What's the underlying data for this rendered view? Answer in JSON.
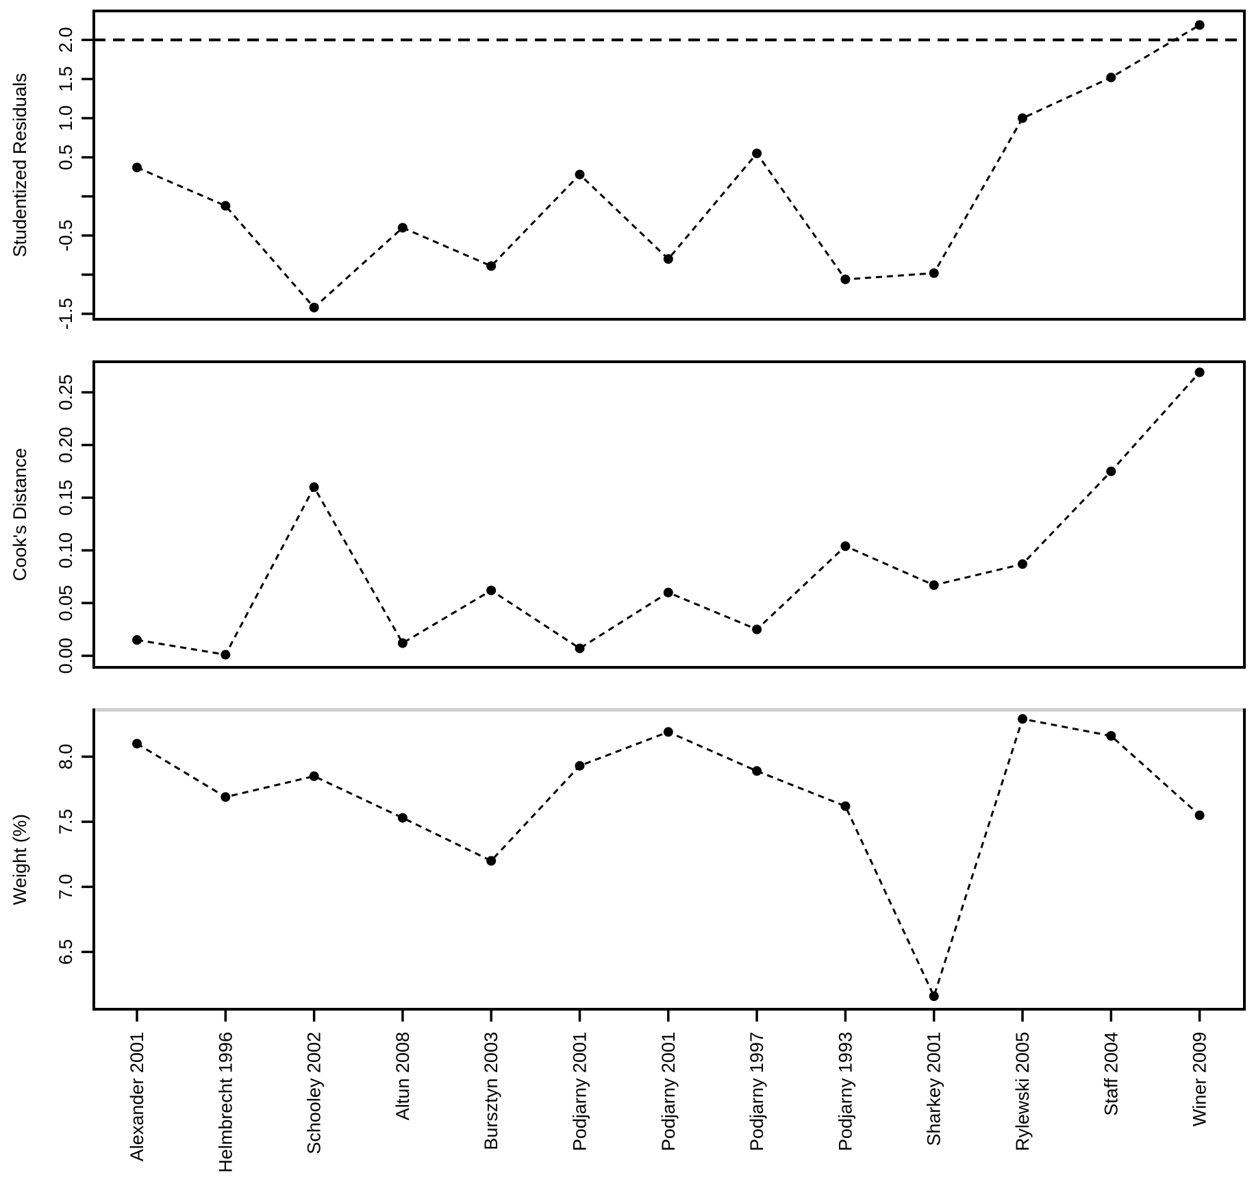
{
  "figure": {
    "background": "#ffffff",
    "foreground": "#000000",
    "marker_color": "#000000",
    "panel3_top_border_color": "#cccccc",
    "description": "Meta-analysis influence diagnostics, three stacked panels sharing one study axis"
  },
  "studies": [
    "Alexander 2001",
    "Helmbrecht 1996",
    "Schooley 2002",
    "Altun 2008",
    "Bursztyn 2003",
    "Podjarny 2001",
    "Podjarny 2001",
    "Podjarny 1997",
    "Podjarny 1993",
    "Sharkey 2001",
    "Rylewski 2005",
    "Staff 2004",
    "Winer 2009"
  ],
  "chart_data": [
    {
      "type": "line",
      "title": "",
      "xlabel": "",
      "ylabel": "Studentized Residuals",
      "categories": [
        "Alexander 2001",
        "Helmbrecht 1996",
        "Schooley 2002",
        "Altun 2008",
        "Bursztyn 2003",
        "Podjarny 2001",
        "Podjarny 2001",
        "Podjarny 1997",
        "Podjarny 1993",
        "Sharkey 2001",
        "Rylewski 2005",
        "Staff 2004",
        "Winer 2009"
      ],
      "values": [
        0.37,
        -0.12,
        -1.42,
        -0.4,
        -0.89,
        0.28,
        -0.8,
        0.55,
        -1.06,
        -0.98,
        1.0,
        1.52,
        2.19
      ],
      "ylim": [
        -1.57,
        2.37
      ],
      "yticks": [
        2.0,
        1.5,
        1.0,
        0.5,
        0.0,
        -0.5,
        -1.0,
        -1.5
      ],
      "ytick_labels": [
        "2.0",
        "1.5",
        "1.0",
        "0.5",
        "",
        "-0.5",
        "",
        "-1.5"
      ],
      "ref_line": {
        "y": 2.0,
        "style": "dashed"
      },
      "line_style": "dashed",
      "marker": "filled-circle",
      "grid": false,
      "legend": "none"
    },
    {
      "type": "line",
      "title": "",
      "xlabel": "",
      "ylabel": "Cook's Distance",
      "categories": [
        "Alexander 2001",
        "Helmbrecht 1996",
        "Schooley 2002",
        "Altun 2008",
        "Bursztyn 2003",
        "Podjarny 2001",
        "Podjarny 2001",
        "Podjarny 1997",
        "Podjarny 1993",
        "Sharkey 2001",
        "Rylewski 2005",
        "Staff 2004",
        "Winer 2009"
      ],
      "values": [
        0.015,
        0.001,
        0.16,
        0.012,
        0.062,
        0.007,
        0.06,
        0.025,
        0.104,
        0.067,
        0.087,
        0.175,
        0.269
      ],
      "ylim": [
        -0.011,
        0.279
      ],
      "yticks": [
        0.25,
        0.2,
        0.15,
        0.1,
        0.05,
        0.0
      ],
      "ytick_labels": [
        "0.25",
        "0.20",
        "0.15",
        "0.10",
        "0.05",
        "0.00"
      ],
      "ref_line": null,
      "line_style": "dashed",
      "marker": "filled-circle",
      "grid": false,
      "legend": "none"
    },
    {
      "type": "line",
      "title": "",
      "xlabel": "",
      "ylabel": "Weight (%)",
      "categories": [
        "Alexander 2001",
        "Helmbrecht 1996",
        "Schooley 2002",
        "Altun 2008",
        "Bursztyn 2003",
        "Podjarny 2001",
        "Podjarny 2001",
        "Podjarny 1997",
        "Podjarny 1993",
        "Sharkey 2001",
        "Rylewski 2005",
        "Staff 2004",
        "Winer 2009"
      ],
      "values": [
        8.1,
        7.69,
        7.85,
        7.53,
        7.2,
        7.93,
        8.19,
        7.89,
        7.62,
        6.16,
        8.29,
        8.16,
        7.55
      ],
      "ylim": [
        6.06,
        8.36
      ],
      "yticks": [
        8.0,
        7.5,
        7.0,
        6.5
      ],
      "ytick_labels": [
        "8.0",
        "7.5",
        "7.0",
        "6.5"
      ],
      "ref_line": null,
      "line_style": "dashed",
      "marker": "filled-circle",
      "grid": false,
      "legend": "none"
    }
  ]
}
